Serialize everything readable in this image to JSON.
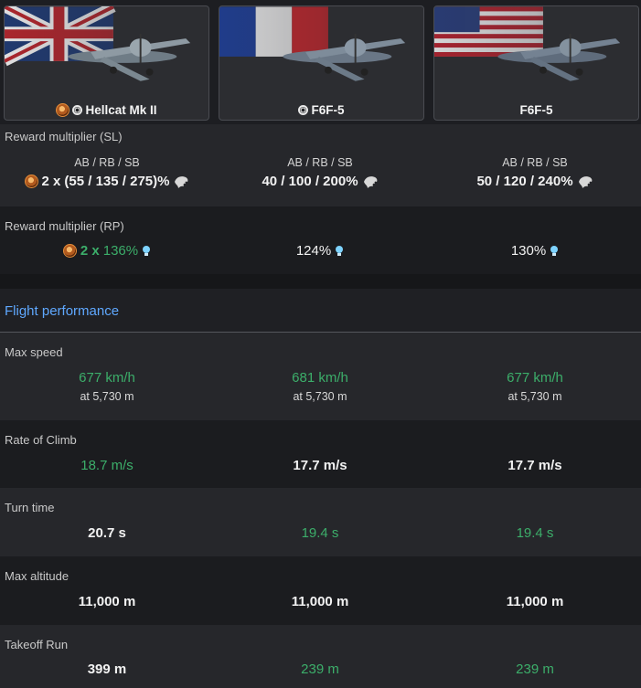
{
  "vehicles": [
    {
      "name": "Hellcat Mk II",
      "flag": "uk",
      "premium": true,
      "ring": true
    },
    {
      "name": "F6F-5",
      "flag": "france",
      "premium": false,
      "ring": true
    },
    {
      "name": "F6F-5",
      "flag": "usa",
      "premium": false,
      "ring": false
    }
  ],
  "reward_sl": {
    "label": "Reward multiplier (SL)",
    "modes": "AB / RB / SB",
    "col1_mult": "2 x",
    "col1_values": "(55 / 135 / 275)%",
    "col2_values": "40 / 100 / 200%",
    "col3_values": "50 / 120 / 240%"
  },
  "reward_rp": {
    "label": "Reward multiplier (RP)",
    "col1_mult": "2 x",
    "col1_value": "136%",
    "col2_value": "124%",
    "col3_value": "130%"
  },
  "section_title": "Flight performance",
  "max_speed": {
    "label": "Max speed",
    "values": [
      "677 km/h",
      "681 km/h",
      "677 km/h"
    ],
    "subs": [
      "at 5,730 m",
      "at 5,730 m",
      "at 5,730 m"
    ]
  },
  "rate_of_climb": {
    "label": "Rate of Climb",
    "values": [
      "18.7 m/s",
      "17.7 m/s",
      "17.7 m/s"
    ]
  },
  "turn_time": {
    "label": "Turn time",
    "values": [
      "20.7 s",
      "19.4 s",
      "19.4 s"
    ]
  },
  "max_altitude": {
    "label": "Max altitude",
    "values": [
      "11,000 m",
      "11,000 m",
      "11,000 m"
    ]
  },
  "takeoff_run": {
    "label": "Takeoff Run",
    "values": [
      "399 m",
      "239 m",
      "239 m"
    ]
  },
  "colors": {
    "good": "#3cae6a",
    "accent": "#5fa8ff",
    "premium": "#e58d3a"
  }
}
